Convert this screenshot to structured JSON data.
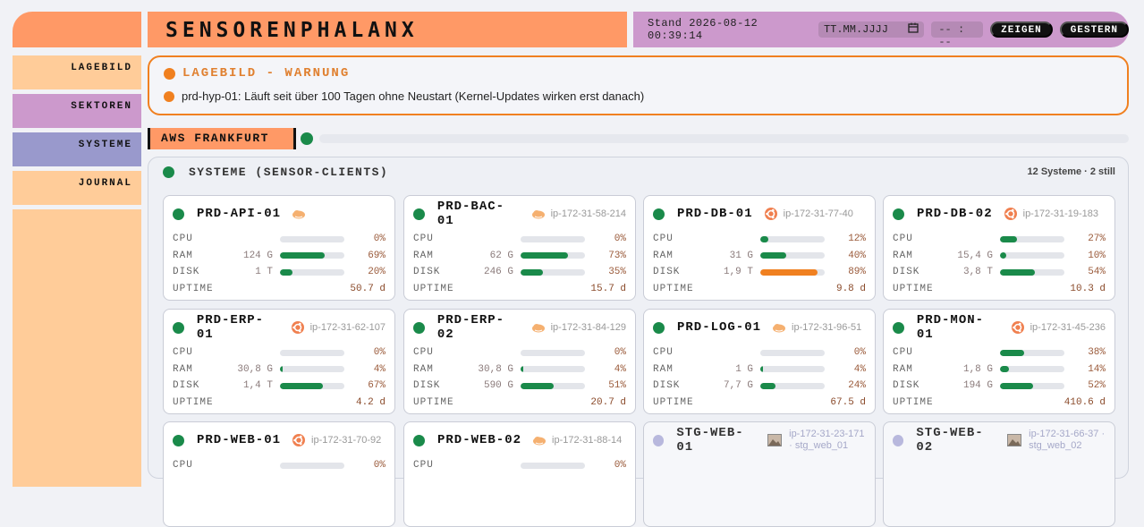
{
  "app": {
    "title": "SENSORENPHALANX"
  },
  "nav": [
    "LAGEBILD",
    "SEKTOREN",
    "SYSTEME",
    "JOURNAL"
  ],
  "controls": {
    "stamp": "Stand 2026-08-12 00:39:14",
    "date_placeholder": "TT.MM.JJJJ",
    "time_placeholder": "-- : --",
    "show_label": "ZEIGEN",
    "yesterday_label": "GESTERN"
  },
  "warning": {
    "title": "LAGEBILD - WARNUNG",
    "message": "prd-hyp-01: Läuft seit über 100 Tagen ohne Neustart (Kernel-Updates wirken erst danach)"
  },
  "region": {
    "label": "AWS FRANKFURT"
  },
  "panel": {
    "title": "SYSTEME (SENSOR-CLIENTS)",
    "summary": "12 Systeme · 2 still"
  },
  "colors": {
    "ok": "#1a8a4a",
    "warn": "#f08020",
    "idle": "#b8b8dd",
    "accent": "#ff9966"
  },
  "labels": {
    "cpu": "CPU",
    "ram": "RAM",
    "disk": "DISK",
    "uptime": "UPTIME"
  },
  "systems": [
    {
      "name": "PRD-API-01",
      "os": "aws-icon",
      "ip": "",
      "state": "ok",
      "cpu_pct": 0,
      "cpu": "0%",
      "ram_size": "124 G",
      "ram_pct": 69,
      "ram": "69%",
      "disk_size": "1 T",
      "disk_pct": 20,
      "disk": "20%",
      "uptime": "50.7 d"
    },
    {
      "name": "PRD-BAC-01",
      "os": "aws-icon",
      "ip": "ip-172-31-58-214",
      "state": "ok",
      "cpu_pct": 0,
      "cpu": "0%",
      "ram_size": "62 G",
      "ram_pct": 73,
      "ram": "73%",
      "disk_size": "246 G",
      "disk_pct": 35,
      "disk": "35%",
      "uptime": "15.7 d"
    },
    {
      "name": "PRD-DB-01",
      "os": "ubuntu-icon",
      "ip": "ip-172-31-77-40",
      "state": "ok",
      "cpu_pct": 12,
      "cpu": "12%",
      "ram_size": "31 G",
      "ram_pct": 40,
      "ram": "40%",
      "disk_size": "1,9 T",
      "disk_pct": 89,
      "disk": "89%",
      "uptime": "9.8 d"
    },
    {
      "name": "PRD-DB-02",
      "os": "ubuntu-icon",
      "ip": "ip-172-31-19-183",
      "state": "ok",
      "cpu_pct": 27,
      "cpu": "27%",
      "ram_size": "15,4 G",
      "ram_pct": 10,
      "ram": "10%",
      "disk_size": "3,8 T",
      "disk_pct": 54,
      "disk": "54%",
      "uptime": "10.3 d"
    },
    {
      "name": "PRD-ERP-01",
      "os": "ubuntu-icon",
      "ip": "ip-172-31-62-107",
      "state": "ok",
      "cpu_pct": 0,
      "cpu": "0%",
      "ram_size": "30,8 G",
      "ram_pct": 4,
      "ram": "4%",
      "disk_size": "1,4 T",
      "disk_pct": 67,
      "disk": "67%",
      "uptime": "4.2 d"
    },
    {
      "name": "PRD-ERP-02",
      "os": "aws-icon",
      "ip": "ip-172-31-84-129",
      "state": "ok",
      "cpu_pct": 0,
      "cpu": "0%",
      "ram_size": "30,8 G",
      "ram_pct": 4,
      "ram": "4%",
      "disk_size": "590 G",
      "disk_pct": 51,
      "disk": "51%",
      "uptime": "20.7 d"
    },
    {
      "name": "PRD-LOG-01",
      "os": "aws-icon",
      "ip": "ip-172-31-96-51",
      "state": "ok",
      "cpu_pct": 0,
      "cpu": "0%",
      "ram_size": "1 G",
      "ram_pct": 4,
      "ram": "4%",
      "disk_size": "7,7 G",
      "disk_pct": 24,
      "disk": "24%",
      "uptime": "67.5 d"
    },
    {
      "name": "PRD-MON-01",
      "os": "ubuntu-icon",
      "ip": "ip-172-31-45-236",
      "state": "ok",
      "cpu_pct": 38,
      "cpu": "38%",
      "ram_size": "1,8 G",
      "ram_pct": 14,
      "ram": "14%",
      "disk_size": "194 G",
      "disk_pct": 52,
      "disk": "52%",
      "uptime": "410.6 d"
    },
    {
      "name": "PRD-WEB-01",
      "os": "ubuntu-icon",
      "ip": "ip-172-31-70-92",
      "state": "ok",
      "cpu_pct": 0,
      "cpu": "0%"
    },
    {
      "name": "PRD-WEB-02",
      "os": "aws-icon",
      "ip": "ip-172-31-88-14",
      "state": "ok",
      "cpu_pct": 0,
      "cpu": "0%"
    },
    {
      "name": "STG-WEB-01",
      "os": "image-icon",
      "ip": "ip-172-31-23-171 · stg_web_01",
      "state": "idle"
    },
    {
      "name": "STG-WEB-02",
      "os": "image-icon",
      "ip": "ip-172-31-66-37 · stg_web_02",
      "state": "idle"
    }
  ]
}
